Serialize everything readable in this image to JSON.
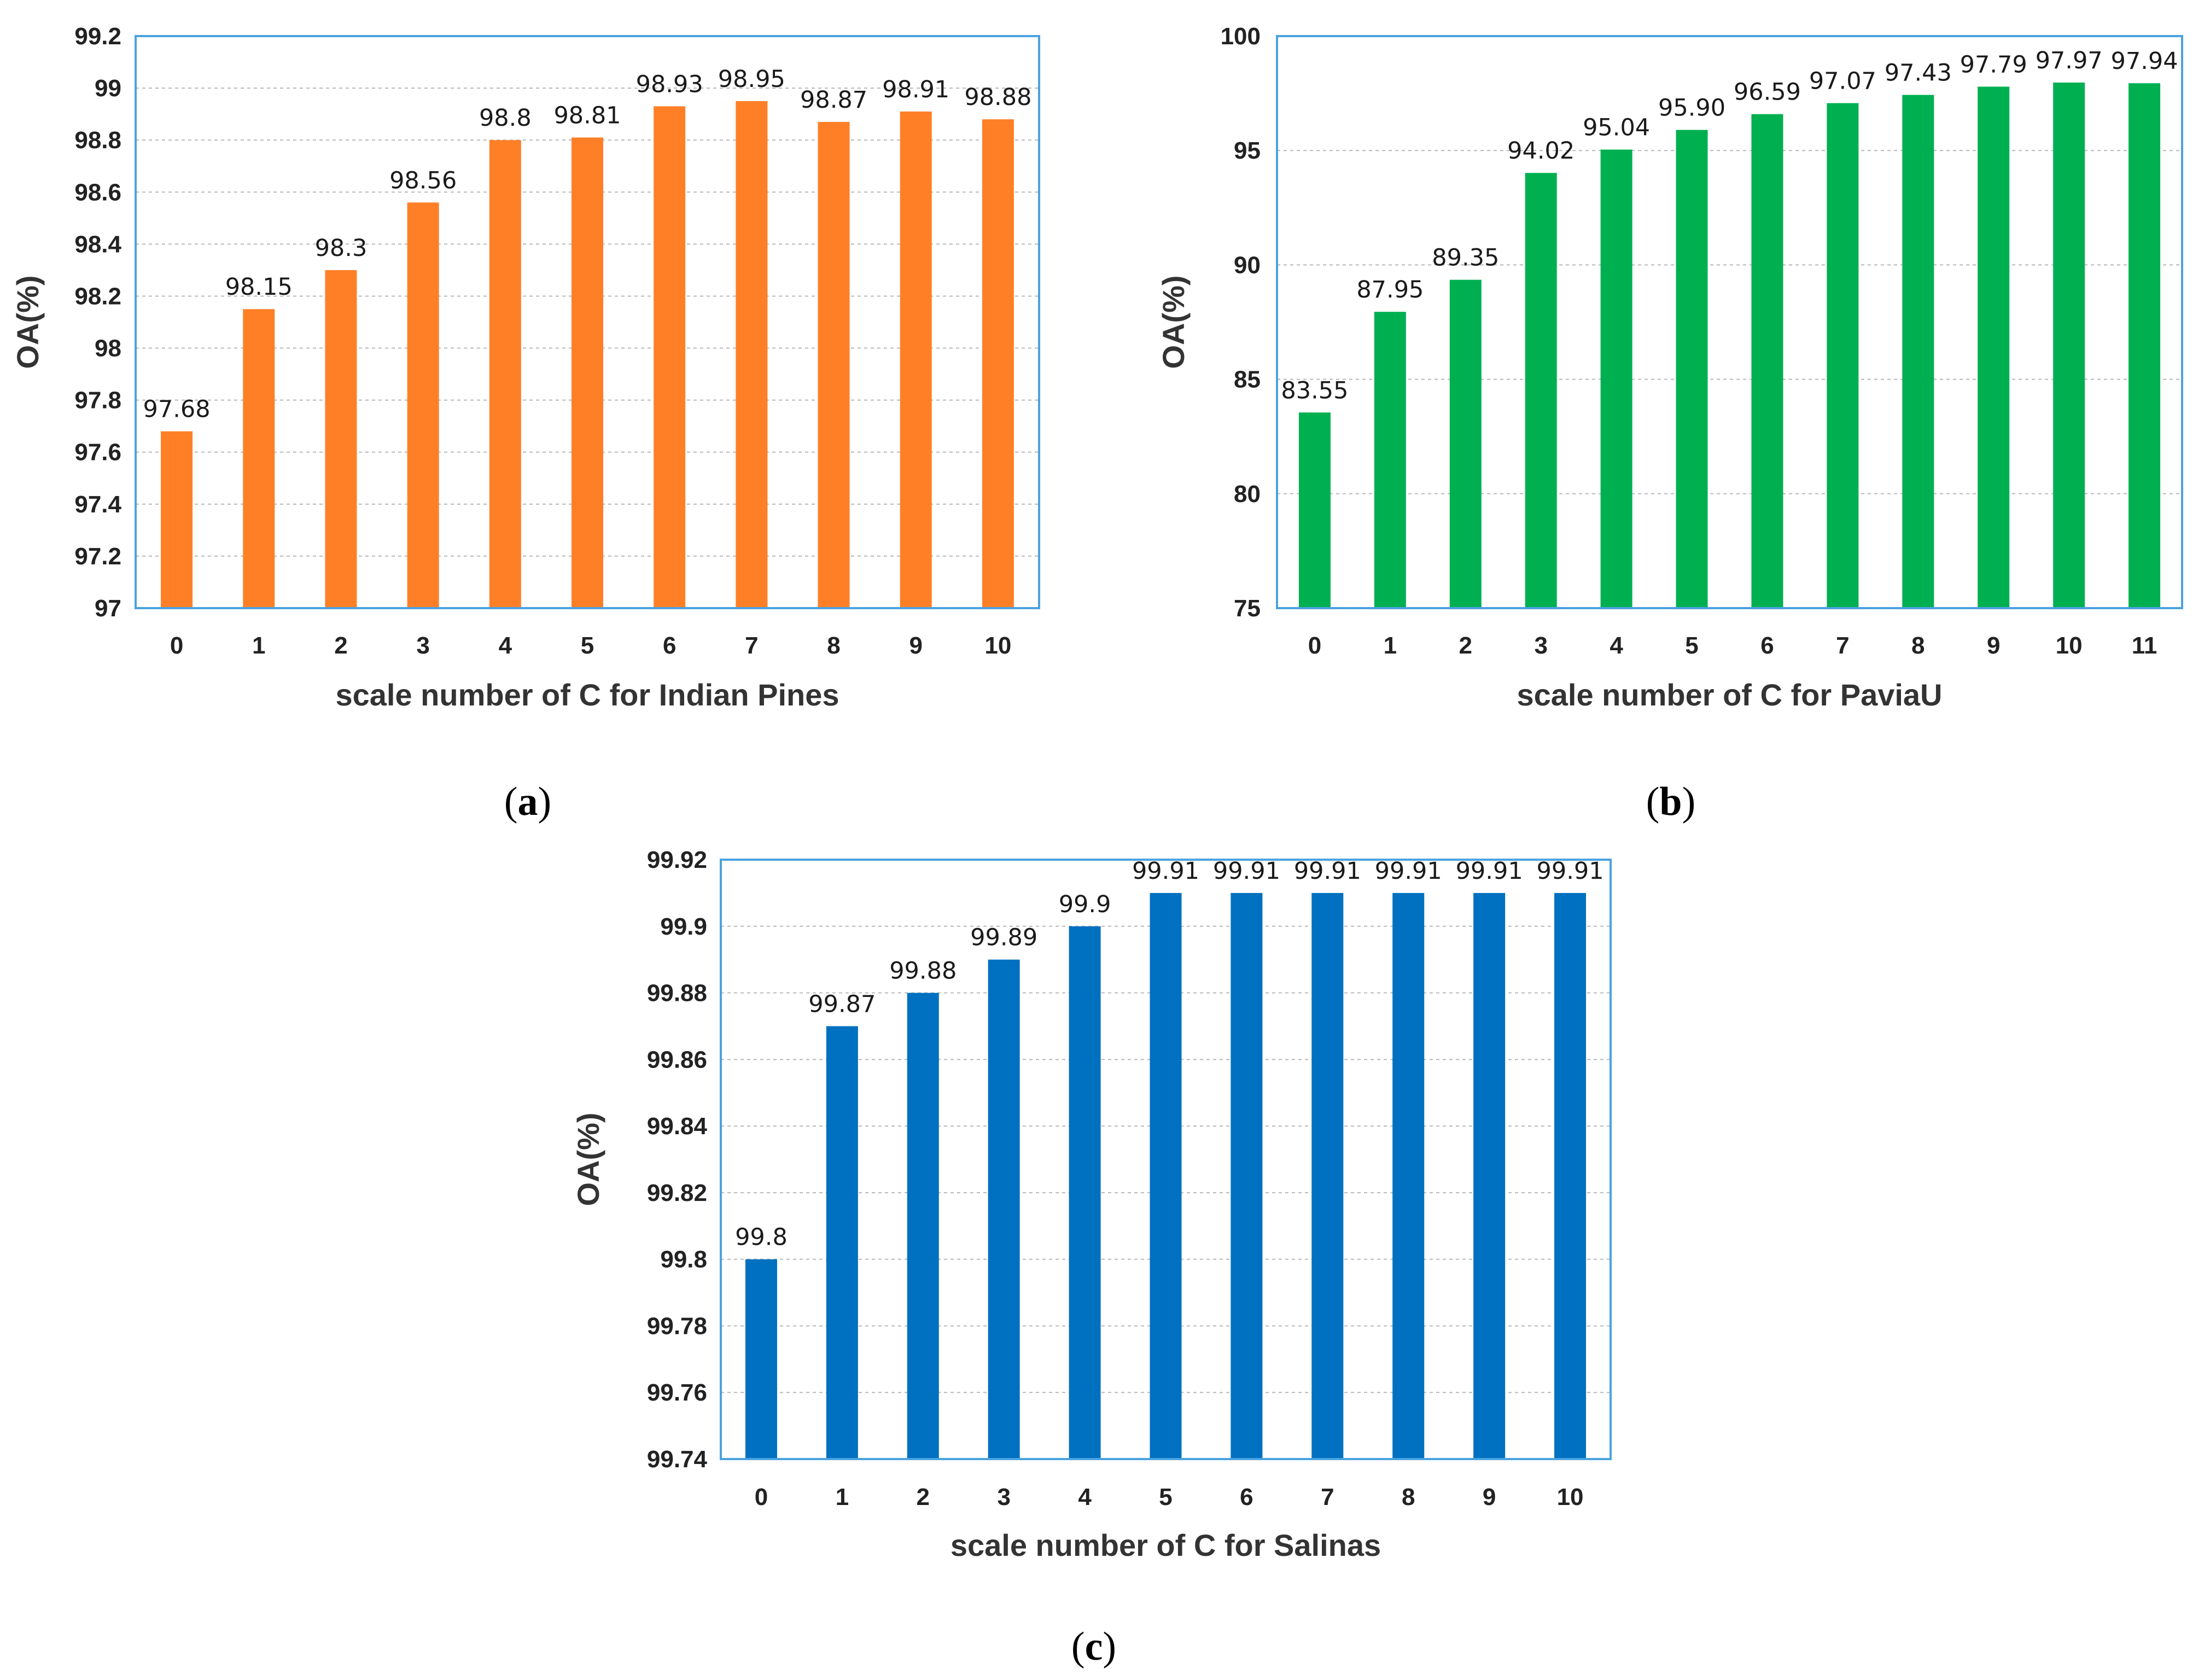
{
  "chart_data": [
    {
      "id": "a",
      "type": "bar",
      "caption_letter": "a",
      "color": "#FF7F27",
      "border_color": "#4AA3DF",
      "xlabel": "scale number of C for Indian Pines",
      "ylabel": "OA(%)",
      "ylim": [
        97,
        99.2
      ],
      "yticks": [
        "97",
        "97.2",
        "97.4",
        "97.6",
        "97.8",
        "98",
        "98.2",
        "98.4",
        "98.6",
        "98.8",
        "99",
        "99.2"
      ],
      "categories": [
        "0",
        "1",
        "2",
        "3",
        "4",
        "5",
        "6",
        "7",
        "8",
        "9",
        "10"
      ],
      "values": [
        97.68,
        98.15,
        98.3,
        98.56,
        98.8,
        98.81,
        98.93,
        98.95,
        98.87,
        98.91,
        98.88
      ],
      "value_labels": [
        "97.68",
        "98.15",
        "98.3",
        "98.56",
        "98.8",
        "98.81",
        "98.93",
        "98.95",
        "98.87",
        "98.91",
        "98.88"
      ],
      "grid": true
    },
    {
      "id": "b",
      "type": "bar",
      "caption_letter": "b",
      "color": "#00B050",
      "border_color": "#4AA3DF",
      "xlabel": "scale number of C for PaviaU",
      "ylabel": "OA(%)",
      "ylim": [
        75,
        100
      ],
      "yticks": [
        "75",
        "80",
        "85",
        "90",
        "95",
        "100"
      ],
      "categories": [
        "0",
        "1",
        "2",
        "3",
        "4",
        "5",
        "6",
        "7",
        "8",
        "9",
        "10",
        "11"
      ],
      "values": [
        83.55,
        87.95,
        89.35,
        94.02,
        95.04,
        95.9,
        96.59,
        97.07,
        97.43,
        97.79,
        97.97,
        97.94
      ],
      "value_labels": [
        "83.55",
        "87.95",
        "89.35",
        "94.02",
        "95.04",
        "95.90",
        "96.59",
        "97.07",
        "97.43",
        "97.79",
        "97.97",
        "97.94"
      ],
      "grid": true
    },
    {
      "id": "c",
      "type": "bar",
      "caption_letter": "c",
      "color": "#0070C0",
      "border_color": "#4AA3DF",
      "xlabel": "scale number of C for Salinas",
      "ylabel": "OA(%)",
      "ylim": [
        99.74,
        99.92
      ],
      "yticks": [
        "99.74",
        "99.76",
        "99.78",
        "99.8",
        "99.82",
        "99.84",
        "99.86",
        "99.88",
        "99.9",
        "99.92"
      ],
      "categories": [
        "0",
        "1",
        "2",
        "3",
        "4",
        "5",
        "6",
        "7",
        "8",
        "9",
        "10"
      ],
      "values": [
        99.8,
        99.87,
        99.88,
        99.89,
        99.9,
        99.91,
        99.91,
        99.91,
        99.91,
        99.91,
        99.91
      ],
      "value_labels": [
        "99.8",
        "99.87",
        "99.88",
        "99.89",
        "99.9",
        "99.91",
        "99.91",
        "99.91",
        "99.91",
        "99.91",
        "99.91"
      ],
      "grid": true
    }
  ]
}
